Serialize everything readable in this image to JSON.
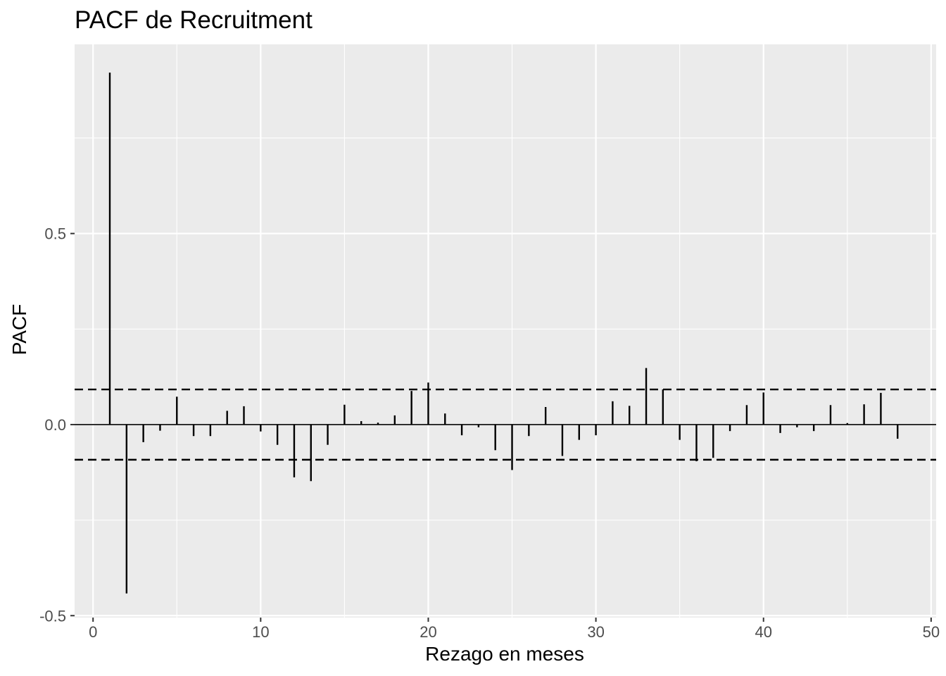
{
  "chart_data": {
    "type": "bar",
    "title": "PACF de Recruitment",
    "xlabel": "Rezago en meses",
    "ylabel": "PACF",
    "xlim": [
      -1.1,
      50.3
    ],
    "ylim": [
      -0.505,
      0.995
    ],
    "x_ticks": [
      0,
      10,
      20,
      30,
      40,
      50
    ],
    "x_tick_labels": [
      "0",
      "10",
      "20",
      "30",
      "40",
      "50"
    ],
    "y_ticks": [
      -0.5,
      0.0,
      0.5
    ],
    "y_tick_labels": [
      "-0.5",
      "0.0",
      "0.5"
    ],
    "grid": true,
    "confidence_bound": 0.092,
    "lags": [
      1,
      2,
      3,
      4,
      5,
      6,
      7,
      8,
      9,
      10,
      11,
      12,
      13,
      14,
      15,
      16,
      17,
      18,
      19,
      20,
      21,
      22,
      23,
      24,
      25,
      26,
      27,
      28,
      29,
      30,
      31,
      32,
      33,
      34,
      35,
      36,
      37,
      38,
      39,
      40,
      41,
      42,
      43,
      44,
      45,
      46,
      47,
      48
    ],
    "values": [
      0.921,
      -0.442,
      -0.046,
      -0.016,
      0.073,
      -0.03,
      -0.03,
      0.036,
      0.048,
      -0.018,
      -0.053,
      -0.138,
      -0.148,
      -0.053,
      0.052,
      0.009,
      0.005,
      0.024,
      0.088,
      0.11,
      0.029,
      -0.028,
      -0.007,
      -0.067,
      -0.119,
      -0.03,
      0.046,
      -0.082,
      -0.04,
      -0.028,
      0.061,
      0.049,
      0.148,
      0.092,
      -0.04,
      -0.096,
      -0.087,
      -0.017,
      0.051,
      0.084,
      -0.022,
      -0.007,
      -0.017,
      0.051,
      0.004,
      0.053,
      0.083,
      -0.037
    ]
  },
  "colors": {
    "panel_background": "#ebebeb",
    "grid_line": "#ffffff",
    "bar": "#000000",
    "bound_line": "#000000"
  }
}
